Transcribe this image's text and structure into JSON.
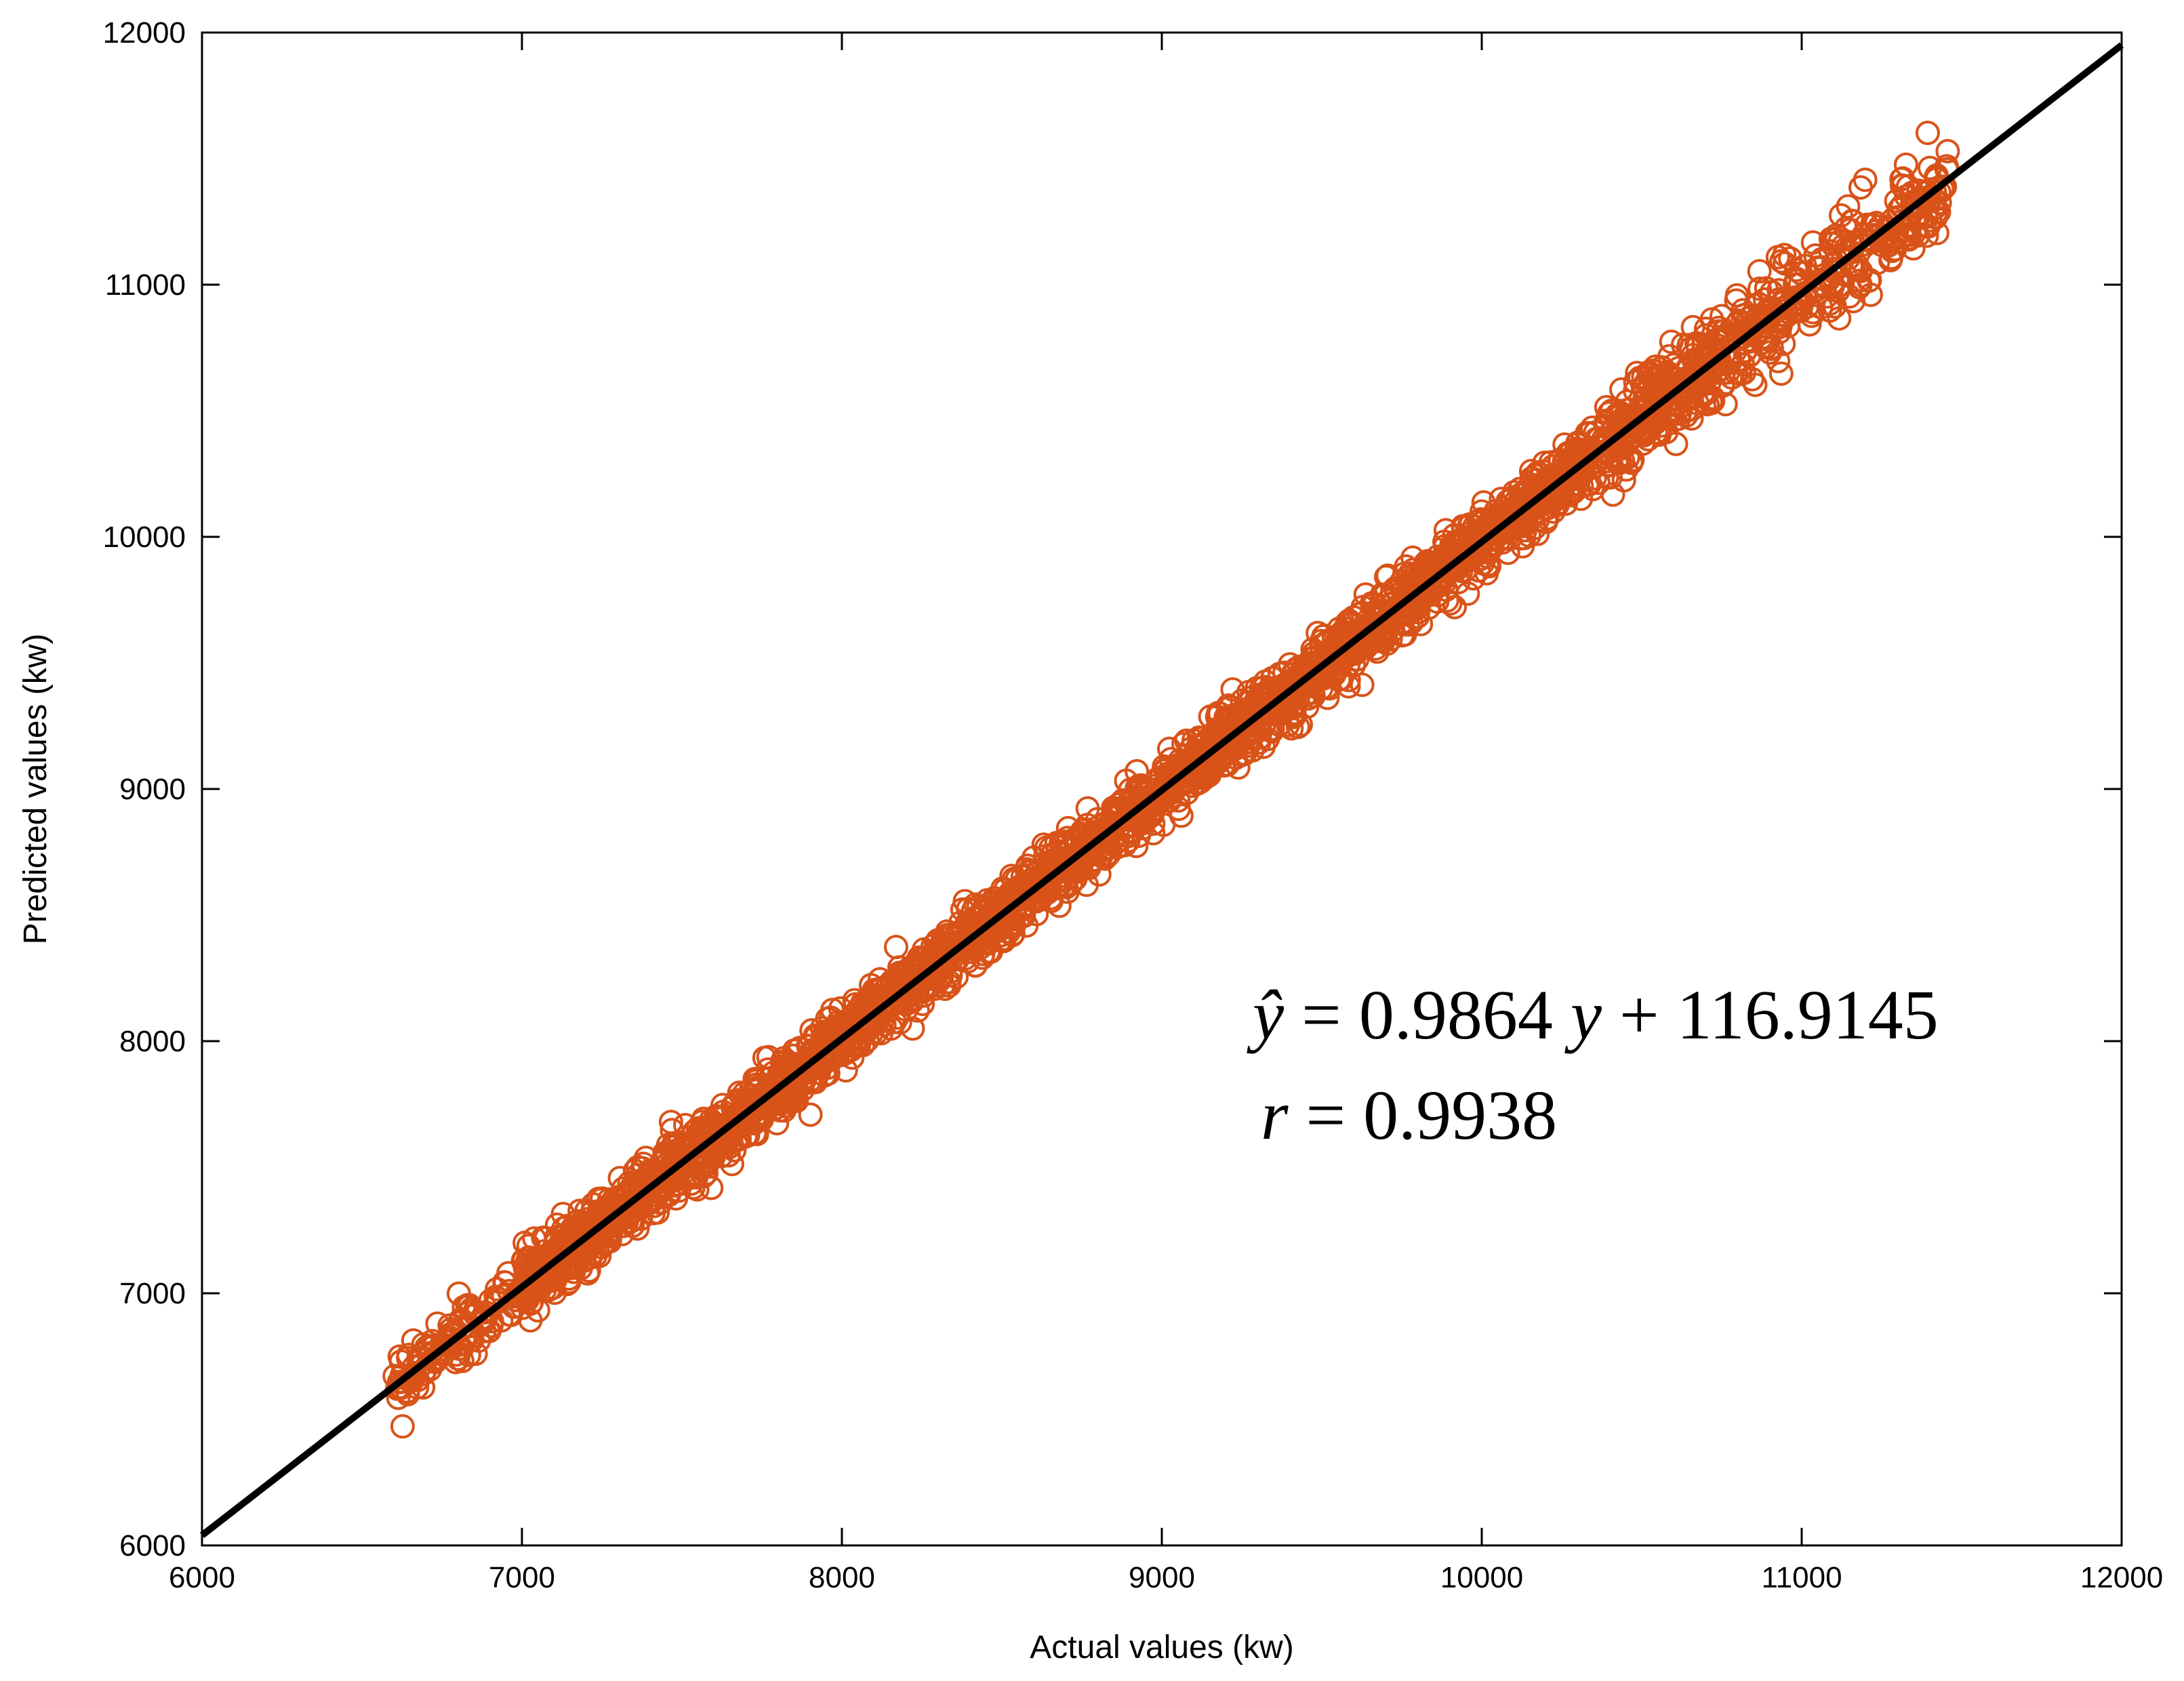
{
  "chart_data": {
    "type": "scatter",
    "title": "",
    "xlabel": "Actual values (kw)",
    "ylabel": "Predicted values (kw)",
    "xlim": [
      6000,
      12000
    ],
    "ylim": [
      6000,
      12000
    ],
    "xticks": [
      "6000",
      "7000",
      "8000",
      "9000",
      "10000",
      "11000",
      "12000"
    ],
    "yticks": [
      "6000",
      "7000",
      "8000",
      "9000",
      "10000",
      "11000",
      "12000"
    ],
    "grid": false,
    "legend": "none",
    "series": [
      {
        "marker": "open-circle",
        "color": "#D95319",
        "x_range": [
          6600,
          11460
        ],
        "y_range": [
          6600,
          11370
        ],
        "note_count_approx": 3000
      }
    ],
    "reference_line": {
      "x": [
        6000,
        12000
      ],
      "y": [
        6040,
        11950
      ],
      "color": "#000000"
    },
    "annotations": {
      "equation": {
        "lhs": "ŷ",
        "eq": "=",
        "slope": "0.9864",
        "var": "y",
        "plus": "+",
        "intercept": "116.9145"
      },
      "correlation": {
        "lhs": "r",
        "eq": "=",
        "value": "0.9938"
      }
    }
  }
}
